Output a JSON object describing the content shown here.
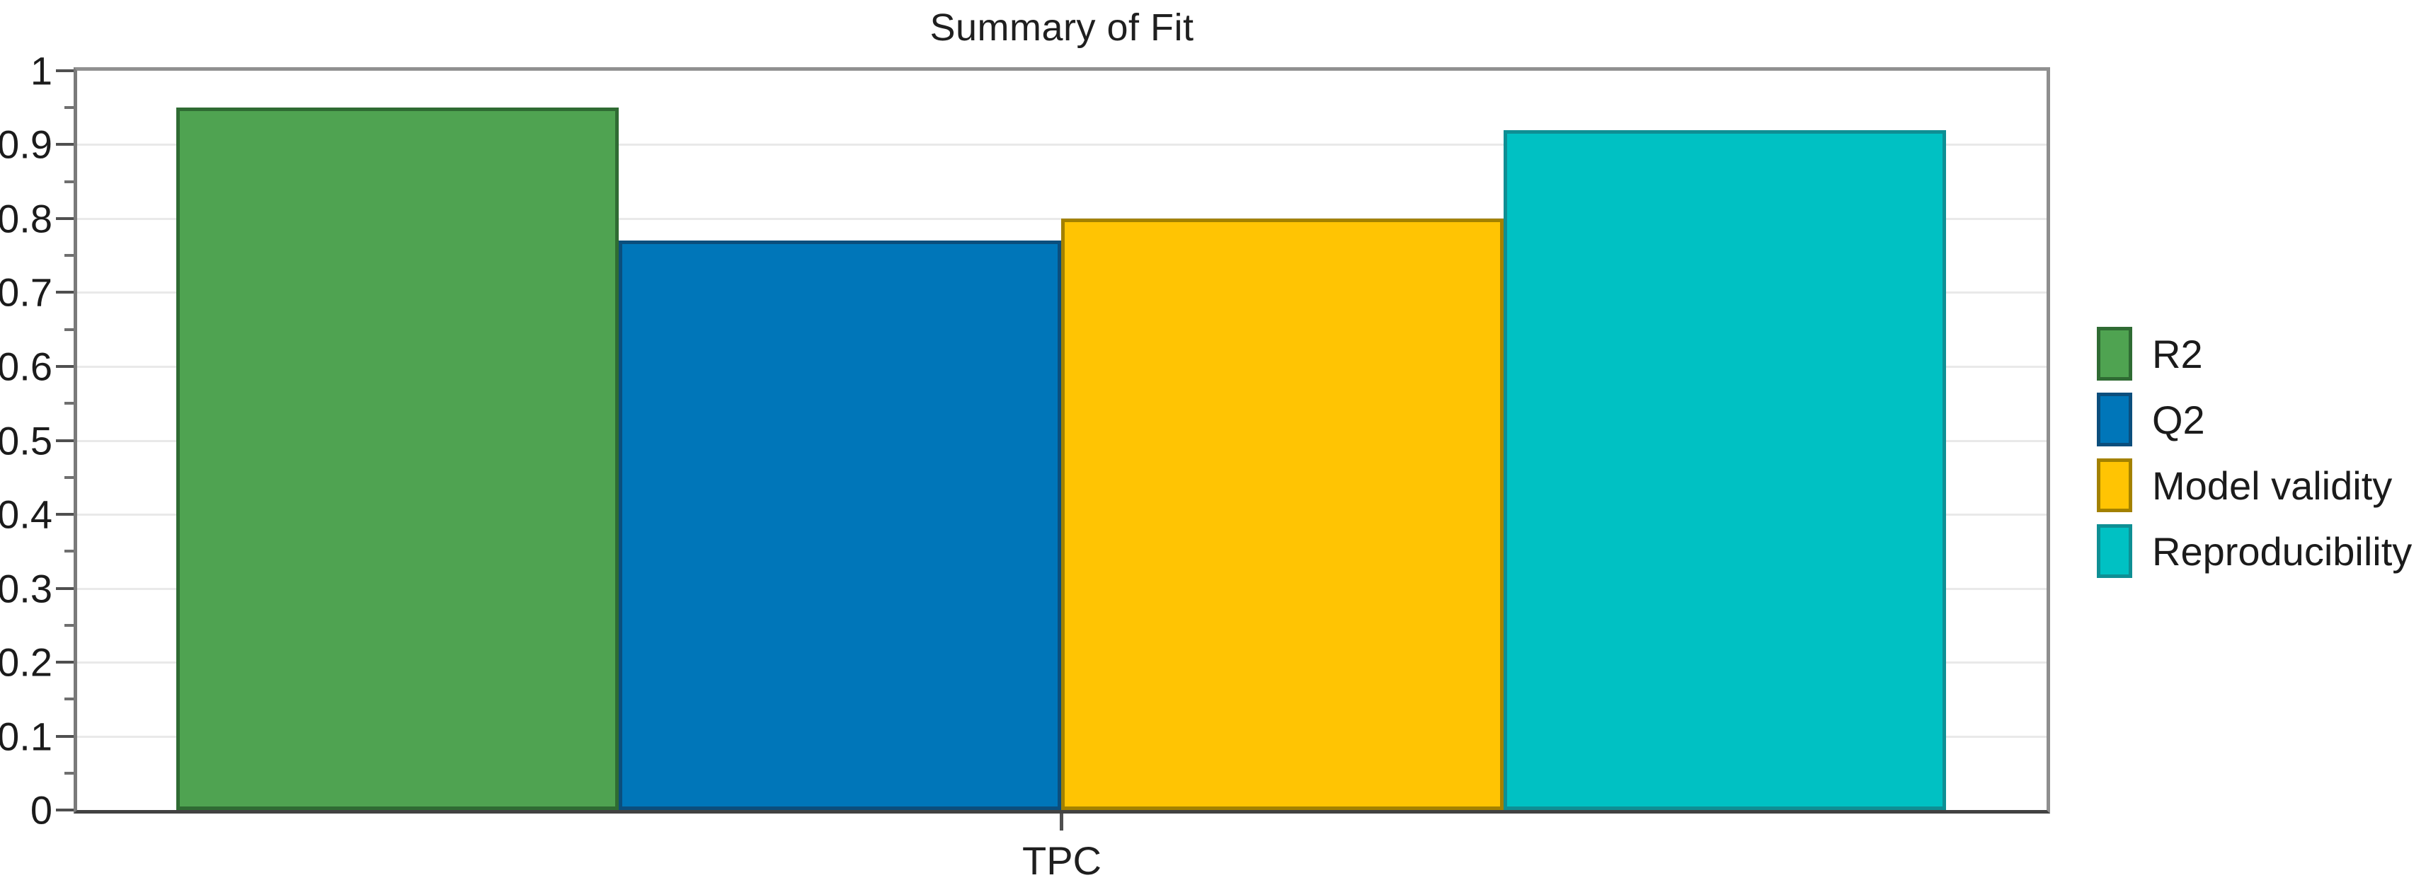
{
  "title": "Summary of Fit",
  "chart_data": {
    "type": "bar",
    "title": "Summary of Fit",
    "categories": [
      "TPC"
    ],
    "series": [
      {
        "name": "R2",
        "values": [
          0.95
        ],
        "fill": "#4FA351",
        "border": "#2F6B33"
      },
      {
        "name": "Q2",
        "values": [
          0.77
        ],
        "fill": "#0076B9",
        "border": "#0B4E7D"
      },
      {
        "name": "Model validity",
        "values": [
          0.8
        ],
        "fill": "#FFC403",
        "border": "#A38100"
      },
      {
        "name": "Reproducibility",
        "values": [
          0.92
        ],
        "fill": "#00C1C3",
        "border": "#0E8F94"
      }
    ],
    "xlabel": "TPC",
    "ylabel": "",
    "ylim": [
      0,
      1
    ],
    "y_major_step": 0.1,
    "y_minor_step": 0.05,
    "y_tick_labels": [
      "0",
      "0.1",
      "0.2",
      "0.3",
      "0.4",
      "0.5",
      "0.6",
      "0.7",
      "0.8",
      "0.9",
      "1"
    ],
    "grid": "horizontal",
    "legend_position": "right-middle"
  },
  "colors": {
    "background": "#FFFFFF",
    "gridline": "#E9E9E9",
    "axis_dark": "#4F4F4F",
    "frame_light": "#8F8F8F",
    "text": "#1B1B1B"
  }
}
